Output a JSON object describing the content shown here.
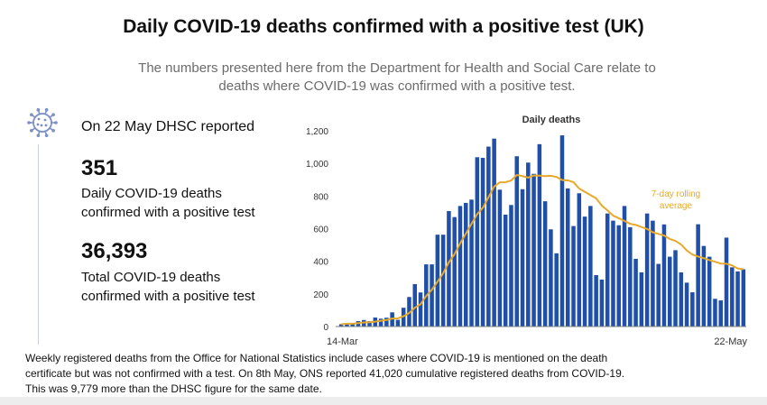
{
  "header": {
    "title": "Daily COVID-19 deaths confirmed with a positive test (UK)",
    "subtitle_line1": "The numbers presented here from the Department for Health and Social Care relate to",
    "subtitle_line2": "deaths where COVID-19 was confirmed with a positive test."
  },
  "summary": {
    "reported": "On 22 May DHSC reported",
    "daily_value": "351",
    "daily_label_line1": "Daily COVID-19 deaths",
    "daily_label_line2": "confirmed with a positive test",
    "total_value": "36,393",
    "total_label_line1": "Total COVID-19 deaths",
    "total_label_line2": "confirmed with a positive test"
  },
  "footer": {
    "line1": "Weekly registered deaths from the Office for National Statistics include cases where COVID-19 is mentioned on the death",
    "line2": "certificate but was not confirmed with a test. On 8th May, ONS reported 41,020 cumulative registered deaths from COVID-19.",
    "line3": "This was 9,779 more than the DHSC figure for the same date."
  },
  "colors": {
    "bar": "#1f4fa8",
    "average_line": "#e8a92a",
    "axis_text": "#333333",
    "title_text": "#111111",
    "subtitle_text": "#6b6b6b",
    "virus_icon": "#7b8fc7"
  },
  "chart_data": {
    "type": "bar",
    "title": "Daily deaths",
    "x_labels": [
      "14-Mar",
      "22-May"
    ],
    "ylim": [
      0,
      1200
    ],
    "yticks": [
      0,
      200,
      400,
      600,
      800,
      1000,
      1200
    ],
    "ytick_labels": [
      "0",
      "200",
      "400",
      "600",
      "800",
      "1,000",
      "1,200"
    ],
    "series": [
      {
        "kind": "bar",
        "values": [
          14,
          20,
          16,
          33,
          40,
          33,
          55,
          48,
          54,
          87,
          41,
          115,
          181,
          260,
          209,
          381,
          381,
          563,
          563,
          708,
          671,
          739,
          758,
          778,
          1038,
          1034,
          1103,
          1152,
          839,
          686,
          745,
          1044,
          842,
          1005,
          936,
          1118,
          768,
          596,
          449,
          1172,
          847,
          616,
          817,
          674,
          739,
          315,
          288,
          693,
          649,
          621,
          739,
          609,
          415,
          332,
          693,
          649,
          384,
          626,
          428,
          468,
          332,
          269,
          210,
          627,
          494,
          428,
          170,
          160,
          545,
          363,
          338,
          351
        ]
      },
      {
        "kind": "line",
        "name": "7-day rolling average",
        "values": [
          14,
          17,
          17,
          21,
          25,
          26,
          30,
          35,
          40,
          49,
          50,
          63,
          83,
          115,
          137,
          187,
          226,
          275,
          327,
          394,
          443,
          510,
          569,
          630,
          689,
          728,
          792,
          858,
          884,
          885,
          895,
          929,
          922,
          913,
          926,
          925,
          922,
          924,
          917,
          898,
          896,
          885,
          846,
          826,
          806,
          786,
          742,
          712,
          680,
          664,
          647,
          630,
          623,
          610,
          598,
          578,
          568,
          558,
          537,
          525,
          503,
          466,
          441,
          429,
          419,
          407,
          397,
          386,
          385,
          375,
          356,
          351
        ]
      }
    ],
    "annotations": [
      "7-day rolling",
      "average"
    ]
  }
}
